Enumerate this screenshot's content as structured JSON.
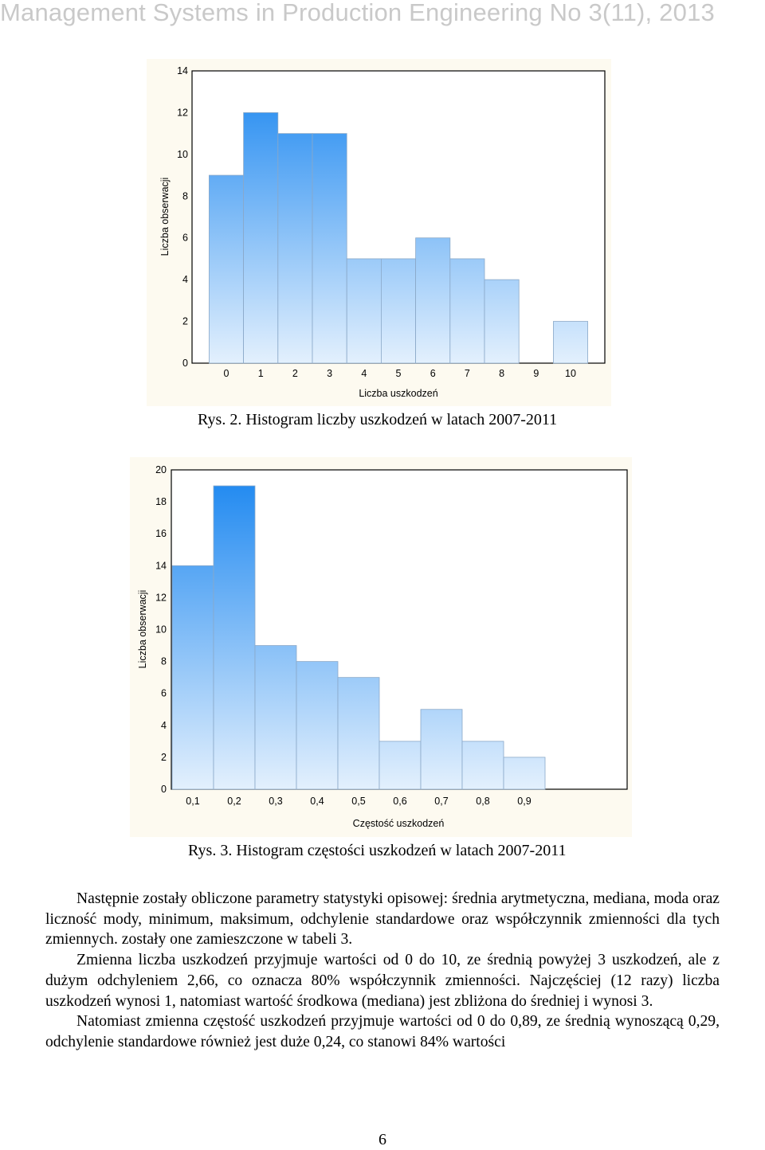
{
  "header": {
    "title": "Management Systems in Production Engineering No 3(11), 2013"
  },
  "figure2": {
    "caption": "Rys. 2. Histogram liczby uszkodzeń w latach 2007-2011"
  },
  "figure3": {
    "caption": "Rys. 3. Histogram częstości uszkodzeń w latach 2007-2011"
  },
  "chart_data": [
    {
      "type": "bar",
      "title": "",
      "xlabel": "Liczba uszkodzeń",
      "ylabel": "Liczba obserwacji",
      "xlim": [
        0,
        10
      ],
      "ylim": [
        0,
        14
      ],
      "x_ticks": [
        "0",
        "1",
        "2",
        "3",
        "4",
        "5",
        "6",
        "7",
        "8",
        "9",
        "10"
      ],
      "y_ticks": [
        "0",
        "2",
        "4",
        "6",
        "8",
        "10",
        "12",
        "14"
      ],
      "bins": [
        0,
        1,
        2,
        3,
        4,
        5,
        6,
        7,
        8,
        9,
        10
      ],
      "values": [
        9,
        12,
        11,
        11,
        5,
        5,
        6,
        5,
        4,
        0,
        2
      ],
      "grid": false,
      "colors": {
        "top": "#1a86f0",
        "bottom": "#e3f0fd",
        "edge": "#8aa8c8"
      }
    },
    {
      "type": "bar",
      "title": "",
      "xlabel": "Częstość uszkodzeń",
      "ylabel": "Liczba obserwacji",
      "xlim": [
        0,
        1
      ],
      "ylim": [
        0,
        20
      ],
      "x_ticks": [
        "0,1",
        "0,2",
        "0,3",
        "0,4",
        "0,5",
        "0,6",
        "0,7",
        "0,8",
        "0,9"
      ],
      "y_ticks": [
        "0",
        "2",
        "4",
        "6",
        "8",
        "10",
        "12",
        "14",
        "16",
        "18",
        "20"
      ],
      "bin_edges": [
        0.05,
        0.15,
        0.25,
        0.35,
        0.45,
        0.55,
        0.65,
        0.75,
        0.85,
        0.95
      ],
      "values": [
        14,
        19,
        9,
        8,
        7,
        3,
        5,
        3,
        2
      ],
      "grid": false,
      "colors": {
        "top": "#1a86f0",
        "bottom": "#e3f0fd",
        "edge": "#8aa8c8"
      }
    }
  ],
  "body": {
    "paragraphs": [
      "Następnie zostały obliczone parametry statystyki opisowej: średnia arytmetyczna, mediana, moda oraz liczność mody, minimum, maksimum, odchylenie standardowe oraz współczynnik zmienności dla tych zmiennych. zostały one zamieszczone w tabeli 3.",
      "Zmienna liczba uszkodzeń przyjmuje wartości od 0 do 10, ze średnią powyżej 3 uszkodzeń, ale z dużym odchyleniem 2,66, co oznacza 80% współczynnik zmienności. Najczęściej (12 razy) liczba uszkodzeń wynosi 1, natomiast wartość środkowa (mediana) jest zbliżona do średniej i wynosi 3.",
      "Natomiast zmienna częstość uszkodzeń przyjmuje wartości od 0 do 0,89, ze średnią wynoszącą 0,29, odchylenie standardowe również jest duże 0,24, co stanowi 84% wartości"
    ]
  },
  "page_number": "6"
}
